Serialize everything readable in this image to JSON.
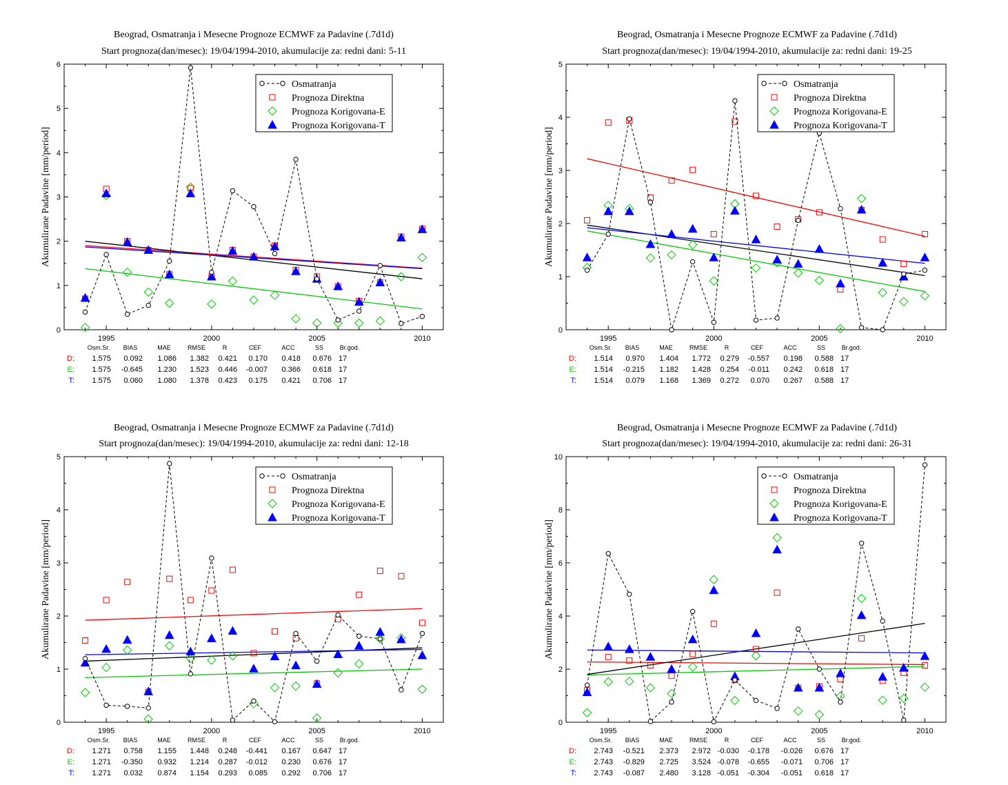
{
  "colors": {
    "obs": "#000000",
    "direct": "#ff0000",
    "corr_e": "#00cc00",
    "corr_t": "#0000ff"
  },
  "chart_data": [
    {
      "type": "scatter",
      "title": "Beograd, Osmatranja i Mesecne Prognoze ECMWF za Padavine (.7d1d)",
      "subtitle": "Start prognoza(dan/mesec): 19/04/1994-2010, akumulacije za: redni dani: 5-11",
      "ylabel": "Akumulirane Padavine [mm/period]",
      "xlim": [
        1993,
        2011
      ],
      "ylim": [
        0,
        6
      ],
      "xticks": [
        1995,
        2000,
        2005,
        2010
      ],
      "yticks": [
        0,
        1,
        2,
        3,
        4,
        5,
        6
      ],
      "x": [
        1994,
        1995,
        1996,
        1997,
        1998,
        1999,
        2000,
        2001,
        2002,
        2003,
        2004,
        2005,
        2006,
        2007,
        2008,
        2009,
        2010
      ],
      "legend": [
        "Osmatranja",
        "Prognoza Direktna",
        "Prognoza Korigovana-E",
        "Prognoza Korigovana-T"
      ],
      "series": [
        {
          "name": "Osmatranja",
          "values": [
            0.4,
            1.7,
            0.35,
            0.55,
            1.55,
            5.92,
            1.3,
            3.14,
            2.78,
            1.72,
            3.85,
            1.15,
            0.22,
            0.42,
            1.45,
            0.14,
            0.3
          ]
        },
        {
          "name": "Prognoza Direktna",
          "values": [
            0.7,
            3.18,
            2.0,
            1.8,
            1.25,
            3.2,
            1.2,
            1.8,
            1.65,
            1.9,
            1.35,
            1.2,
            0.98,
            0.65,
            1.07,
            2.1,
            2.28
          ]
        },
        {
          "name": "Prognoza Korigovana-E",
          "values": [
            0.05,
            3.03,
            1.3,
            0.85,
            0.6,
            3.22,
            0.58,
            1.1,
            0.67,
            0.78,
            0.25,
            0.15,
            0.15,
            0.15,
            0.2,
            1.2,
            1.63
          ]
        },
        {
          "name": "Prognoza Korigovana-T",
          "values": [
            0.72,
            3.08,
            1.98,
            1.8,
            1.25,
            3.08,
            1.2,
            1.78,
            1.65,
            1.88,
            1.32,
            1.15,
            0.98,
            0.63,
            1.07,
            2.08,
            2.27
          ]
        }
      ],
      "trends": {
        "obs": [
          2.0,
          1.15
        ],
        "direct": [
          1.9,
          1.39
        ],
        "corr_e": [
          1.38,
          0.47
        ],
        "corr_t": [
          1.87,
          1.38
        ]
      },
      "stats": {
        "headers": [
          "Osm.Sr.",
          "BIAS",
          "MAE",
          "RMSE",
          "R",
          "CEF",
          "ACC",
          "SS",
          "Br.god."
        ],
        "rows": [
          {
            "label": "D:",
            "values": [
              "1.575",
              "0.092",
              "1.086",
              "1.382",
              "0.421",
              "0.170",
              "0.418",
              "0.676",
              "17"
            ]
          },
          {
            "label": "E:",
            "values": [
              "1.575",
              "-0.645",
              "1.230",
              "1.523",
              "0.446",
              "-0.007",
              "0.366",
              "0.618",
              "17"
            ]
          },
          {
            "label": "T:",
            "values": [
              "1.575",
              "0.060",
              "1.080",
              "1.378",
              "0.423",
              "0.175",
              "0.421",
              "0.706",
              "17"
            ]
          }
        ]
      }
    },
    {
      "type": "scatter",
      "title": "Beograd, Osmatranja i Mesecne Prognoze ECMWF za Padavine (.7d1d)",
      "subtitle": "Start prognoza(dan/mesec): 19/04/1994-2010, akumulacije za: redni dani: 19-25",
      "ylabel": "Akumulirane Padavine [mm/period]",
      "xlim": [
        1993,
        2011
      ],
      "ylim": [
        0,
        5
      ],
      "xticks": [
        1995,
        2000,
        2005,
        2010
      ],
      "yticks": [
        0,
        1,
        2,
        3,
        4,
        5
      ],
      "x": [
        1994,
        1995,
        1996,
        1997,
        1998,
        1999,
        2000,
        2001,
        2002,
        2003,
        2004,
        2005,
        2006,
        2007,
        2008,
        2009,
        2010
      ],
      "legend": [
        "Osmatranja",
        "Prognoza Direktna",
        "Prognoza Korigovana-E",
        "Prognoza Korigovana-T"
      ],
      "series": [
        {
          "name": "Osmatranja",
          "values": [
            1.12,
            1.8,
            3.97,
            2.4,
            0.0,
            1.28,
            0.14,
            4.31,
            0.18,
            0.22,
            2.06,
            3.7,
            2.28,
            0.04,
            0.0,
            1.05,
            1.12
          ]
        },
        {
          "name": "Prognoza Direktna",
          "values": [
            2.06,
            3.9,
            3.94,
            2.49,
            2.81,
            3.01,
            1.8,
            3.92,
            2.52,
            1.94,
            2.08,
            2.21,
            0.76,
            2.25,
            1.7,
            1.24,
            1.8
          ]
        },
        {
          "name": "Prognoza Korigovana-E",
          "values": [
            1.17,
            2.34,
            2.28,
            1.35,
            1.41,
            1.6,
            0.92,
            2.37,
            1.16,
            1.26,
            1.07,
            0.93,
            0.02,
            2.47,
            0.7,
            0.53,
            0.64
          ]
        },
        {
          "name": "Prognoza Korigovana-T",
          "values": [
            1.36,
            2.23,
            2.23,
            1.61,
            1.8,
            1.9,
            1.36,
            2.24,
            1.7,
            1.32,
            1.24,
            1.52,
            0.87,
            2.26,
            1.26,
            1.0,
            1.36
          ]
        }
      ],
      "trends": {
        "obs": [
          1.97,
          1.02
        ],
        "direct": [
          3.22,
          1.76
        ],
        "corr_e": [
          1.86,
          0.72
        ],
        "corr_t": [
          1.92,
          1.25
        ]
      },
      "stats": {
        "headers": [
          "Osm.Sr.",
          "BIAS",
          "MAE",
          "RMSE",
          "R",
          "CEF",
          "ACC",
          "SS",
          "Br.god."
        ],
        "rows": [
          {
            "label": "D:",
            "values": [
              "1.514",
              "0.970",
              "1.404",
              "1.772",
              "0.279",
              "-0.557",
              "0.198",
              "0.588",
              "17"
            ]
          },
          {
            "label": "E:",
            "values": [
              "1.514",
              "-0.215",
              "1.182",
              "1.428",
              "0.254",
              "-0.011",
              "0.242",
              "0.618",
              "17"
            ]
          },
          {
            "label": "T:",
            "values": [
              "1.514",
              "0.079",
              "1.168",
              "1.369",
              "0.272",
              "0.070",
              "0.267",
              "0.588",
              "17"
            ]
          }
        ]
      }
    },
    {
      "type": "scatter",
      "title": "Beograd, Osmatranja i Mesecne Prognoze ECMWF za Padavine (.7d1d)",
      "subtitle": "Start prognoza(dan/mesec): 19/04/1994-2010, akumulacije za: redni dani: 12-18",
      "ylabel": "Akumulirane Padavine [mm/period]",
      "xlim": [
        1993,
        2011
      ],
      "ylim": [
        0,
        5
      ],
      "xticks": [
        1995,
        2000,
        2005,
        2010
      ],
      "yticks": [
        0,
        1,
        2,
        3,
        4,
        5
      ],
      "x": [
        1994,
        1995,
        1996,
        1997,
        1998,
        1999,
        2000,
        2001,
        2002,
        2003,
        2004,
        2005,
        2006,
        2007,
        2008,
        2009,
        2010
      ],
      "legend": [
        "Osmatranja",
        "Prognoza Direktna",
        "Prognoza Korigovana-E",
        "Prognoza Korigovana-T"
      ],
      "series": [
        {
          "name": "Osmatranja",
          "values": [
            1.2,
            0.32,
            0.3,
            0.27,
            4.87,
            0.91,
            3.09,
            0.04,
            0.4,
            0.01,
            1.67,
            1.15,
            2.02,
            1.62,
            1.57,
            0.61,
            1.67
          ]
        },
        {
          "name": "Prognoza Direktna",
          "values": [
            1.54,
            2.3,
            2.64,
            0.57,
            2.7,
            2.3,
            2.48,
            2.87,
            1.3,
            1.71,
            1.58,
            0.73,
            1.94,
            2.4,
            2.85,
            2.75,
            1.87
          ]
        },
        {
          "name": "Prognoza Korigovana-E",
          "values": [
            0.56,
            1.03,
            1.36,
            0.06,
            1.44,
            1.2,
            1.17,
            1.25,
            0.35,
            0.65,
            0.68,
            0.08,
            0.93,
            1.1,
            1.57,
            1.59,
            0.62
          ]
        },
        {
          "name": "Prognoza Korigovana-T",
          "values": [
            1.12,
            1.38,
            1.55,
            0.58,
            1.64,
            1.33,
            1.58,
            1.72,
            1.01,
            1.24,
            1.07,
            0.72,
            1.28,
            1.44,
            1.7,
            1.56,
            1.26
          ]
        }
      ],
      "trends": {
        "obs": [
          1.15,
          1.4
        ],
        "direct": [
          1.92,
          2.14
        ],
        "corr_e": [
          0.84,
          1.0
        ],
        "corr_t": [
          1.27,
          1.37
        ]
      },
      "stats": {
        "headers": [
          "Osm.Sr.",
          "BIAS",
          "MAE",
          "RMSE",
          "R",
          "CEF",
          "ACC",
          "SS",
          "Br.god."
        ],
        "rows": [
          {
            "label": "D:",
            "values": [
              "1.271",
              "0.758",
              "1.155",
              "1.448",
              "0.248",
              "-0.441",
              "0.167",
              "0.647",
              "17"
            ]
          },
          {
            "label": "E:",
            "values": [
              "1.271",
              "-0.350",
              "0.932",
              "1.214",
              "0.287",
              "-0.012",
              "0.230",
              "0.676",
              "17"
            ]
          },
          {
            "label": "T:",
            "values": [
              "1.271",
              "0.032",
              "0.874",
              "1.154",
              "0.293",
              "0.085",
              "0.292",
              "0.706",
              "17"
            ]
          }
        ]
      }
    },
    {
      "type": "scatter",
      "title": "Beograd, Osmatranja i Mesecne Prognoze ECMWF za Padavine (.7d1d)",
      "subtitle": "Start prognoza(dan/mesec): 19/04/1994-2010, akumulacije za: redni dani: 26-31",
      "ylabel": "Akumulirane Padavine [mm/period]",
      "xlim": [
        1993,
        2011
      ],
      "ylim": [
        0,
        10
      ],
      "xticks": [
        1995,
        2000,
        2005,
        2010
      ],
      "yticks": [
        0,
        2,
        4,
        6,
        8,
        10
      ],
      "x": [
        1994,
        1995,
        1996,
        1997,
        1998,
        1999,
        2000,
        2001,
        2002,
        2003,
        2004,
        2005,
        2006,
        2007,
        2008,
        2009,
        2010
      ],
      "legend": [
        "Osmatranja",
        "Prognoza Direktna",
        "Prognoza Korigovana-E",
        "Prognoza Korigovana-T"
      ],
      "series": [
        {
          "name": "Osmatranja",
          "values": [
            1.4,
            6.35,
            4.82,
            0.03,
            0.76,
            4.17,
            0.02,
            1.59,
            0.82,
            0.52,
            3.51,
            2.0,
            0.76,
            6.74,
            3.81,
            0.08,
            9.69
          ]
        },
        {
          "name": "Prognoza Direktna",
          "values": [
            1.2,
            2.46,
            2.32,
            2.14,
            1.75,
            2.57,
            3.71,
            1.59,
            2.75,
            4.88,
            1.29,
            1.35,
            1.62,
            3.16,
            1.56,
            1.86,
            2.14
          ]
        },
        {
          "name": "Prognoza Korigovana-E",
          "values": [
            0.36,
            1.52,
            1.54,
            1.3,
            1.08,
            2.08,
            5.37,
            0.82,
            2.5,
            6.95,
            0.42,
            0.29,
            0.98,
            4.66,
            0.83,
            0.9,
            1.32
          ]
        },
        {
          "name": "Prognoza Korigovana-T",
          "values": [
            1.13,
            2.85,
            2.75,
            2.46,
            2.0,
            3.12,
            4.97,
            1.73,
            3.35,
            6.5,
            1.3,
            1.3,
            1.84,
            4.03,
            1.71,
            2.05,
            2.49
          ]
        }
      ],
      "trends": {
        "obs": [
          1.8,
          3.72
        ],
        "direct": [
          2.27,
          2.17
        ],
        "corr_e": [
          1.78,
          2.1
        ],
        "corr_t": [
          2.72,
          2.61
        ]
      },
      "stats": {
        "headers": [
          "Osm.Sr.",
          "BIAS",
          "MAE",
          "RMSE",
          "R",
          "CEF",
          "ACC",
          "SS",
          "Br.god."
        ],
        "rows": [
          {
            "label": "D:",
            "values": [
              "2.743",
              "-0.521",
              "2.373",
              "2.972",
              "-0.030",
              "-0.178",
              "-0.026",
              "0.676",
              "17"
            ]
          },
          {
            "label": "E:",
            "values": [
              "2.743",
              "-0.829",
              "2.725",
              "3.524",
              "-0.078",
              "-0.655",
              "-0.071",
              "0.706",
              "17"
            ]
          },
          {
            "label": "T:",
            "values": [
              "2.743",
              "-0.087",
              "2.480",
              "3.128",
              "-0.051",
              "-0.304",
              "-0.051",
              "0.618",
              "17"
            ]
          }
        ]
      }
    }
  ]
}
